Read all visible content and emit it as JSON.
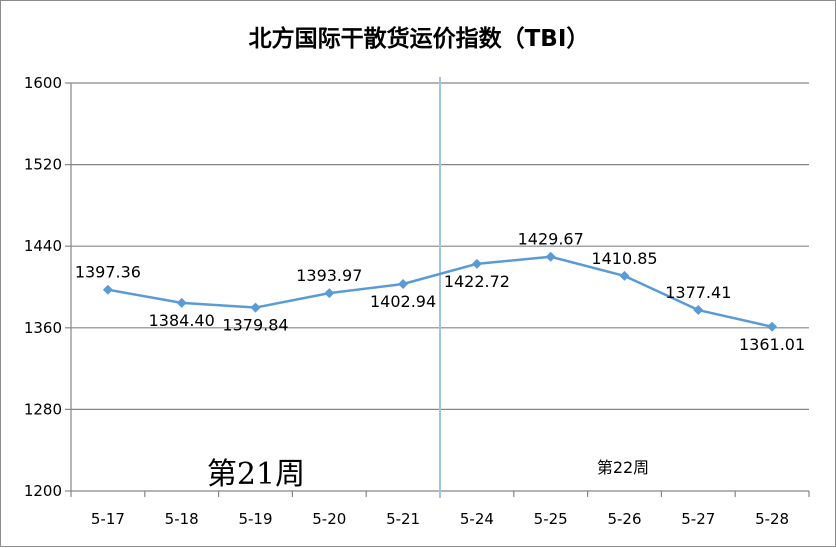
{
  "chart_data": {
    "type": "line",
    "title": "北方国际干散货运价指数（TBI）",
    "categories": [
      "5-17",
      "5-18",
      "5-19",
      "5-20",
      "5-21",
      "5-24",
      "5-25",
      "5-26",
      "5-27",
      "5-28"
    ],
    "values": [
      1397.36,
      1384.4,
      1379.84,
      1393.97,
      1402.94,
      1422.72,
      1429.67,
      1410.85,
      1377.41,
      1361.01
    ],
    "data_labels": [
      "1397.36",
      "1384.40",
      "1379.84",
      "1393.97",
      "1402.94",
      "1422.72",
      "1429.67",
      "1410.85",
      "1377.41",
      "1361.01"
    ],
    "yticks": [
      1200,
      1280,
      1360,
      1440,
      1520,
      1600
    ],
    "ylim": [
      1200,
      1600
    ],
    "xlabel": "",
    "ylabel": "",
    "grid": true,
    "legend": "none",
    "annotations": {
      "week21": "第21周",
      "week22": "第22周",
      "divider_after_category": "5-21"
    },
    "colors": {
      "series": "#5b9bd5",
      "divider": "#9dc3e6",
      "gridline": "#868686",
      "axis": "#868686"
    }
  }
}
